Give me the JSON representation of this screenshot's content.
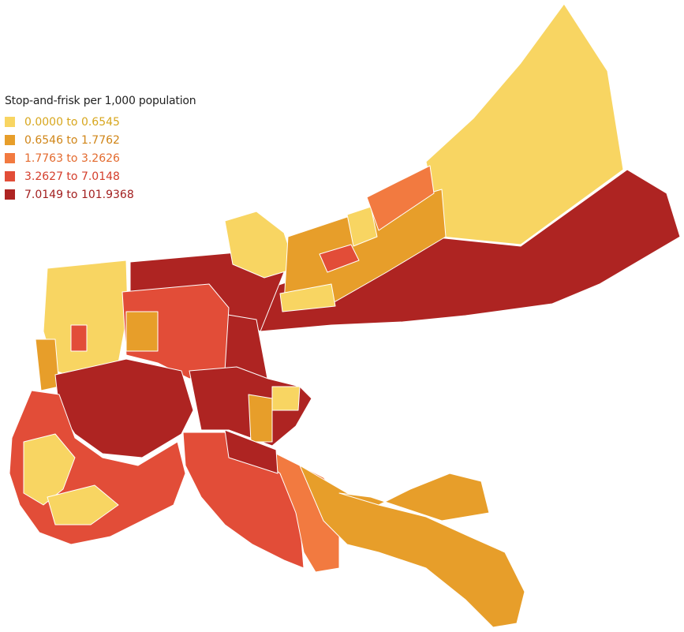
{
  "legend": {
    "title": "Stop-and-frisk per 1,000 population",
    "items": [
      {
        "label": "0.0000 to 0.6545",
        "color": "#f8d562",
        "text_color": "#d7a61d"
      },
      {
        "label": "0.6546 to 1.7762",
        "color": "#e79e2a",
        "text_color": "#d08517"
      },
      {
        "label": "1.7763 to 3.2626",
        "color": "#f27a40",
        "text_color": "#e36a2e"
      },
      {
        "label": "3.2627 to 7.0148",
        "color": "#e24d38",
        "text_color": "#d43d2b"
      },
      {
        "label": "7.0149 to 101.9368",
        "color": "#ae2422",
        "text_color": "#a21f1f"
      }
    ]
  }
}
